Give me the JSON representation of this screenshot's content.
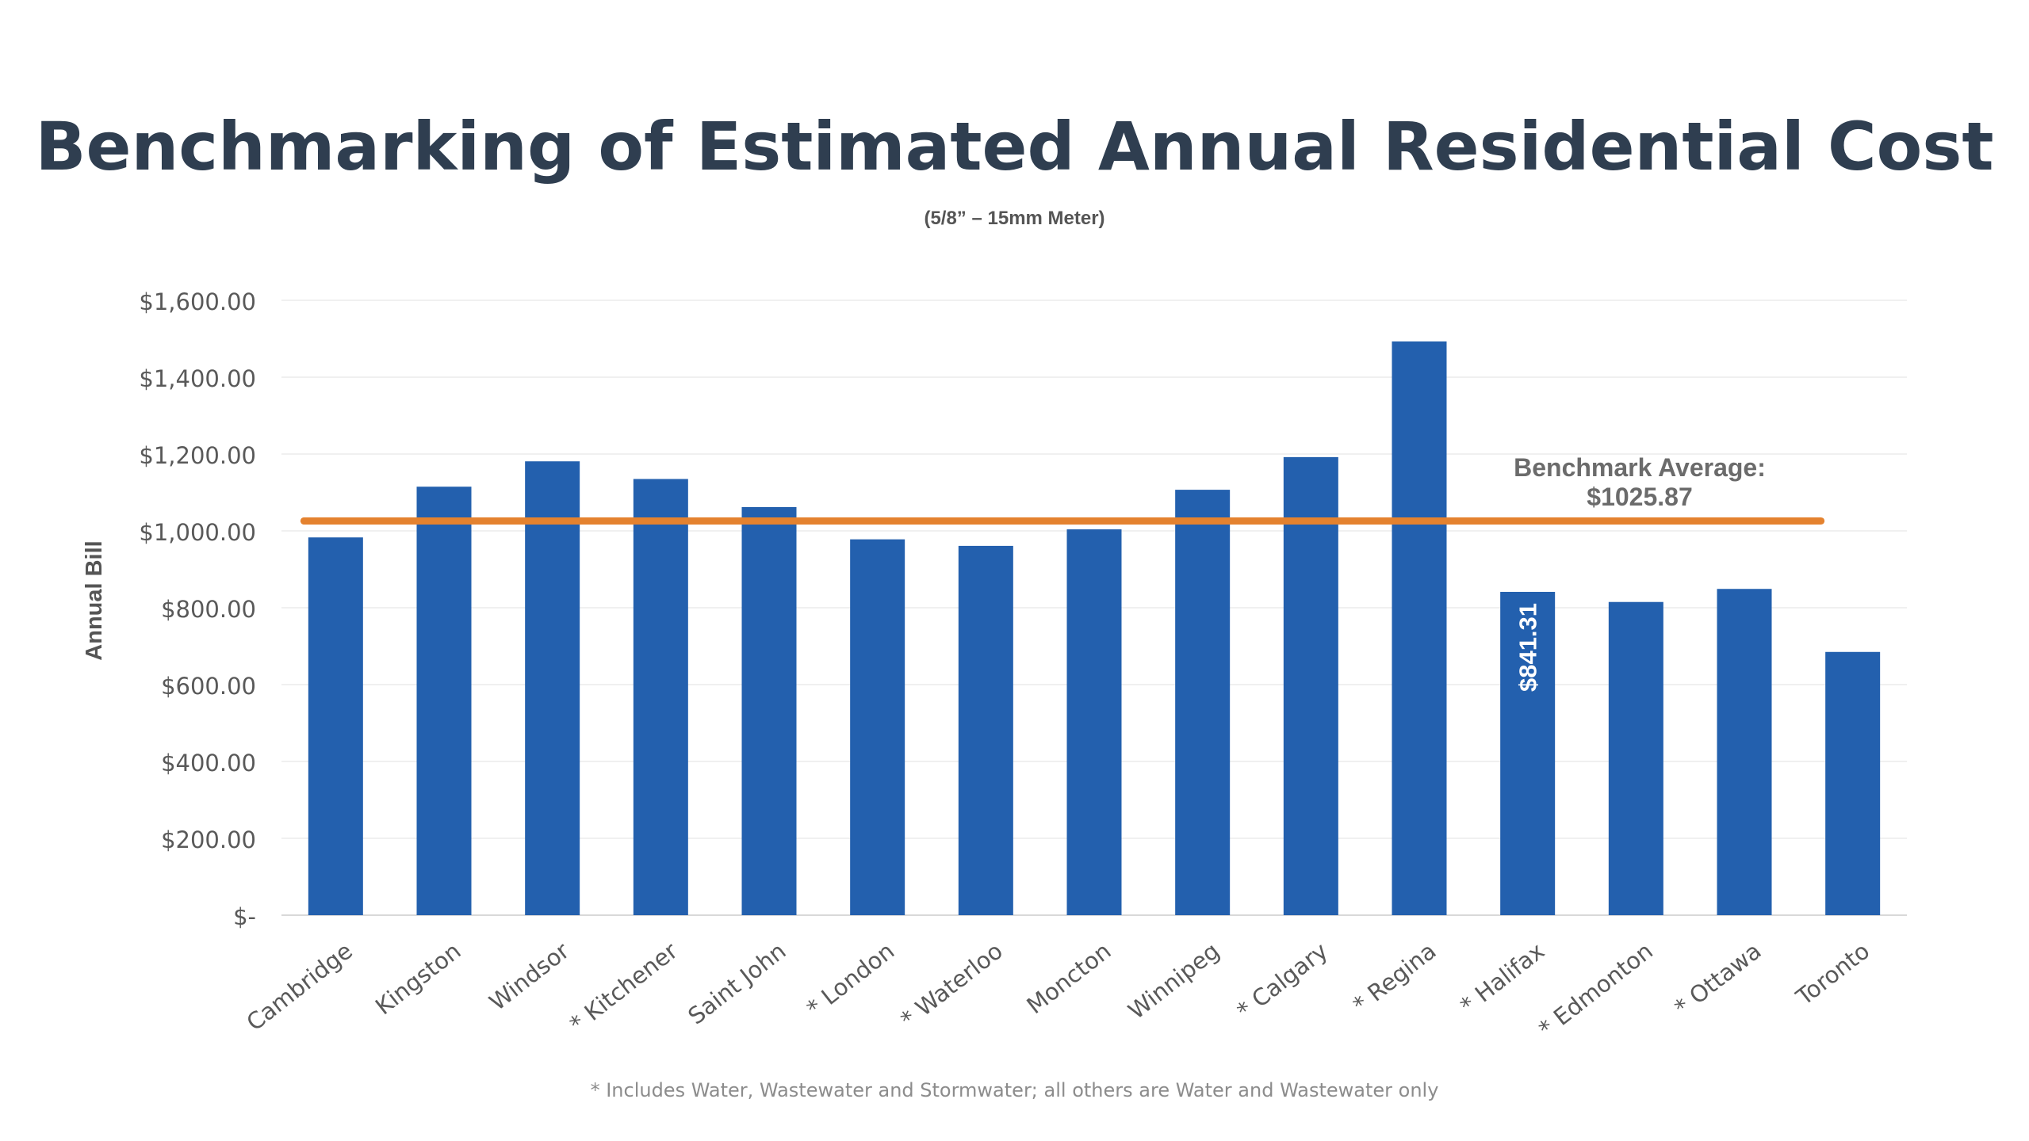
{
  "chart_data": {
    "type": "bar",
    "title": "Benchmarking of Estimated Annual Residential Cost",
    "subtitle": "(5/8” – 15mm Meter)",
    "ylabel": "Annual Bill",
    "xlabel": "",
    "ylim": [
      0,
      1600
    ],
    "yticks": [
      {
        "value": 0,
        "label": "$-"
      },
      {
        "value": 200,
        "label": "$200.00"
      },
      {
        "value": 400,
        "label": "$400.00"
      },
      {
        "value": 600,
        "label": "$600.00"
      },
      {
        "value": 800,
        "label": "$800.00"
      },
      {
        "value": 1000,
        "label": "$1,000.00"
      },
      {
        "value": 1200,
        "label": "$1,200.00"
      },
      {
        "value": 1400,
        "label": "$1,400.00"
      },
      {
        "value": 1600,
        "label": "$1,600.00"
      }
    ],
    "grid": true,
    "categories": [
      "Cambridge",
      "Kingston",
      "Windsor",
      "* Kitchener",
      "Saint John",
      "* London",
      "* Waterloo",
      "Moncton",
      "Winnipeg",
      "* Calgary",
      "* Regina",
      "* Halifax",
      "* Edmonton",
      "* Ottawa",
      "Toronto"
    ],
    "values": [
      983,
      1115,
      1181,
      1135,
      1062,
      978,
      961,
      1004,
      1107,
      1192,
      1493,
      841.31,
      815,
      849,
      685
    ],
    "bar_color": "#2360ae",
    "data_labels": [
      {
        "index": 11,
        "text": "$841.31",
        "color": "#ffffff"
      }
    ],
    "reference_line": {
      "value": 1025.87,
      "color": "#e4822f",
      "label_line1": "Benchmark Average:",
      "label_line2": "$1025.87"
    }
  },
  "footnote": "* Includes Water, Wastewater and Stormwater; all others are Water and Wastewater only"
}
